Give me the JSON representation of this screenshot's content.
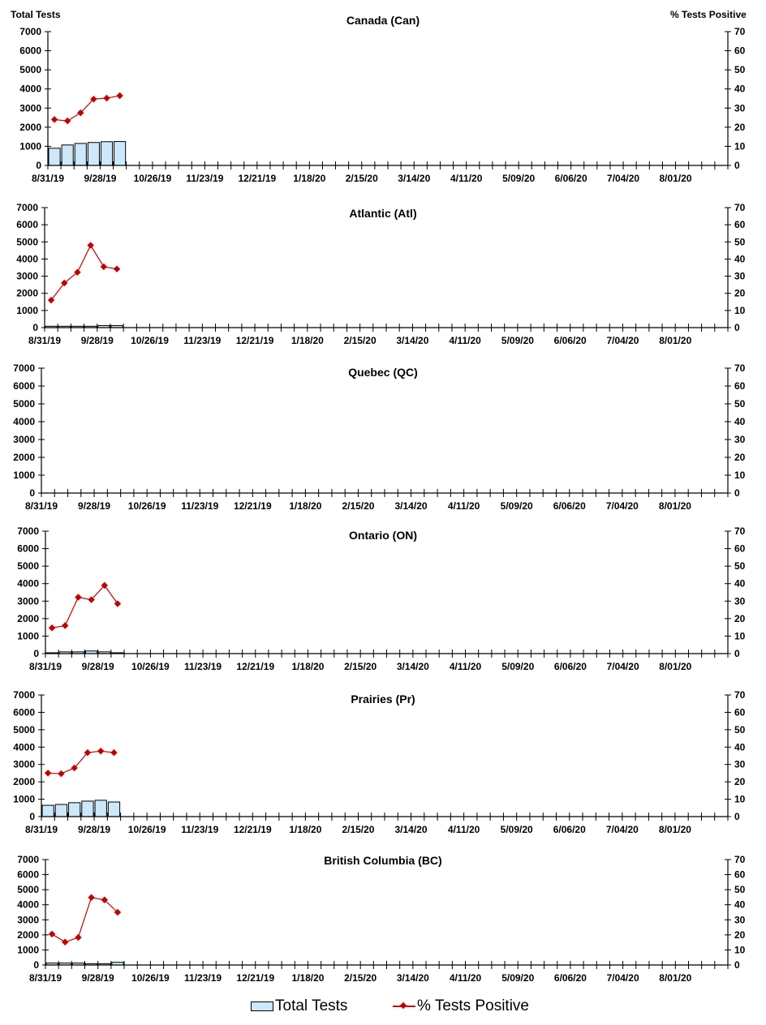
{
  "axes": {
    "left_label": "Total Tests",
    "right_label": "% Tests Positive"
  },
  "legend": {
    "bars_label": "Total Tests",
    "line_label": "% Tests Positive"
  },
  "colors": {
    "bar_fill": "#cce8fa",
    "bar_stroke": "#000000",
    "line": "#c00000"
  },
  "chart_data": [
    {
      "type": "bar+line",
      "title": "Canada (Can)",
      "xlabel": "",
      "ylabel": "Total Tests",
      "y2label": "% Tests Positive",
      "ylim": [
        0,
        7000
      ],
      "y2lim": [
        0,
        70
      ],
      "x_tick_labels": [
        "8/31/19",
        "9/28/19",
        "10/26/19",
        "11/23/19",
        "12/21/19",
        "1/18/20",
        "2/15/20",
        "3/14/20",
        "4/11/20",
        "5/09/20",
        "6/06/20",
        "7/04/20",
        "8/01/20"
      ],
      "categories": [
        "8/31/19",
        "9/07/19",
        "9/14/19",
        "9/21/19",
        "9/28/19",
        "10/05/19"
      ],
      "series": [
        {
          "name": "Total Tests",
          "type": "bar",
          "values": [
            900,
            1070,
            1150,
            1200,
            1240,
            1250
          ]
        },
        {
          "name": "% Tests Positive",
          "type": "line",
          "values": [
            24.0,
            23.3,
            27.5,
            34.7,
            35.2,
            36.5
          ]
        }
      ]
    },
    {
      "type": "bar+line",
      "title": "Atlantic (Atl)",
      "ylim": [
        0,
        7000
      ],
      "y2lim": [
        0,
        70
      ],
      "categories": [
        "8/31/19",
        "9/07/19",
        "9/14/19",
        "9/21/19",
        "9/28/19",
        "10/05/19"
      ],
      "series": [
        {
          "name": "Total Tests",
          "type": "bar",
          "values": [
            80,
            80,
            80,
            80,
            120,
            120
          ]
        },
        {
          "name": "% Tests Positive",
          "type": "line",
          "values": [
            16.0,
            26.0,
            32.3,
            48.0,
            35.5,
            34.2
          ]
        }
      ]
    },
    {
      "type": "bar+line",
      "title": "Quebec (QC)",
      "ylim": [
        0,
        7000
      ],
      "y2lim": [
        0,
        70
      ],
      "categories": [],
      "series": [
        {
          "name": "Total Tests",
          "type": "bar",
          "values": []
        },
        {
          "name": "% Tests Positive",
          "type": "line",
          "values": []
        }
      ]
    },
    {
      "type": "bar+line",
      "title": "Ontario (ON)",
      "ylim": [
        0,
        7000
      ],
      "y2lim": [
        0,
        70
      ],
      "categories": [
        "8/31/19",
        "9/07/19",
        "9/14/19",
        "9/21/19",
        "9/28/19",
        "10/05/19"
      ],
      "series": [
        {
          "name": "Total Tests",
          "type": "bar",
          "values": [
            50,
            100,
            100,
            150,
            100,
            50
          ]
        },
        {
          "name": "% Tests Positive",
          "type": "line",
          "values": [
            14.7,
            16.0,
            32.2,
            30.8,
            39.0,
            28.5
          ]
        }
      ]
    },
    {
      "type": "bar+line",
      "title": "Prairies (Pr)",
      "ylim": [
        0,
        7000
      ],
      "y2lim": [
        0,
        70
      ],
      "categories": [
        "8/31/19",
        "9/07/19",
        "9/14/19",
        "9/21/19",
        "9/28/19",
        "10/05/19"
      ],
      "series": [
        {
          "name": "Total Tests",
          "type": "bar",
          "values": [
            650,
            700,
            800,
            890,
            940,
            840
          ]
        },
        {
          "name": "% Tests Positive",
          "type": "line",
          "values": [
            25.0,
            24.7,
            28.0,
            36.8,
            37.7,
            36.8
          ]
        }
      ]
    },
    {
      "type": "bar+line",
      "title": "British Columbia (BC)",
      "ylim": [
        0,
        7000
      ],
      "y2lim": [
        0,
        70
      ],
      "categories": [
        "8/31/19",
        "9/07/19",
        "9/14/19",
        "9/21/19",
        "9/28/19",
        "10/05/19"
      ],
      "series": [
        {
          "name": "Total Tests",
          "type": "bar",
          "values": [
            130,
            130,
            130,
            90,
            90,
            180
          ]
        },
        {
          "name": "% Tests Positive",
          "type": "line",
          "values": [
            20.5,
            15.2,
            18.3,
            44.8,
            43.2,
            35.0
          ]
        }
      ]
    }
  ],
  "y_ticks": [
    0,
    1000,
    2000,
    3000,
    4000,
    5000,
    6000,
    7000
  ],
  "y2_ticks": [
    0,
    10,
    20,
    30,
    40,
    50,
    60,
    70
  ]
}
